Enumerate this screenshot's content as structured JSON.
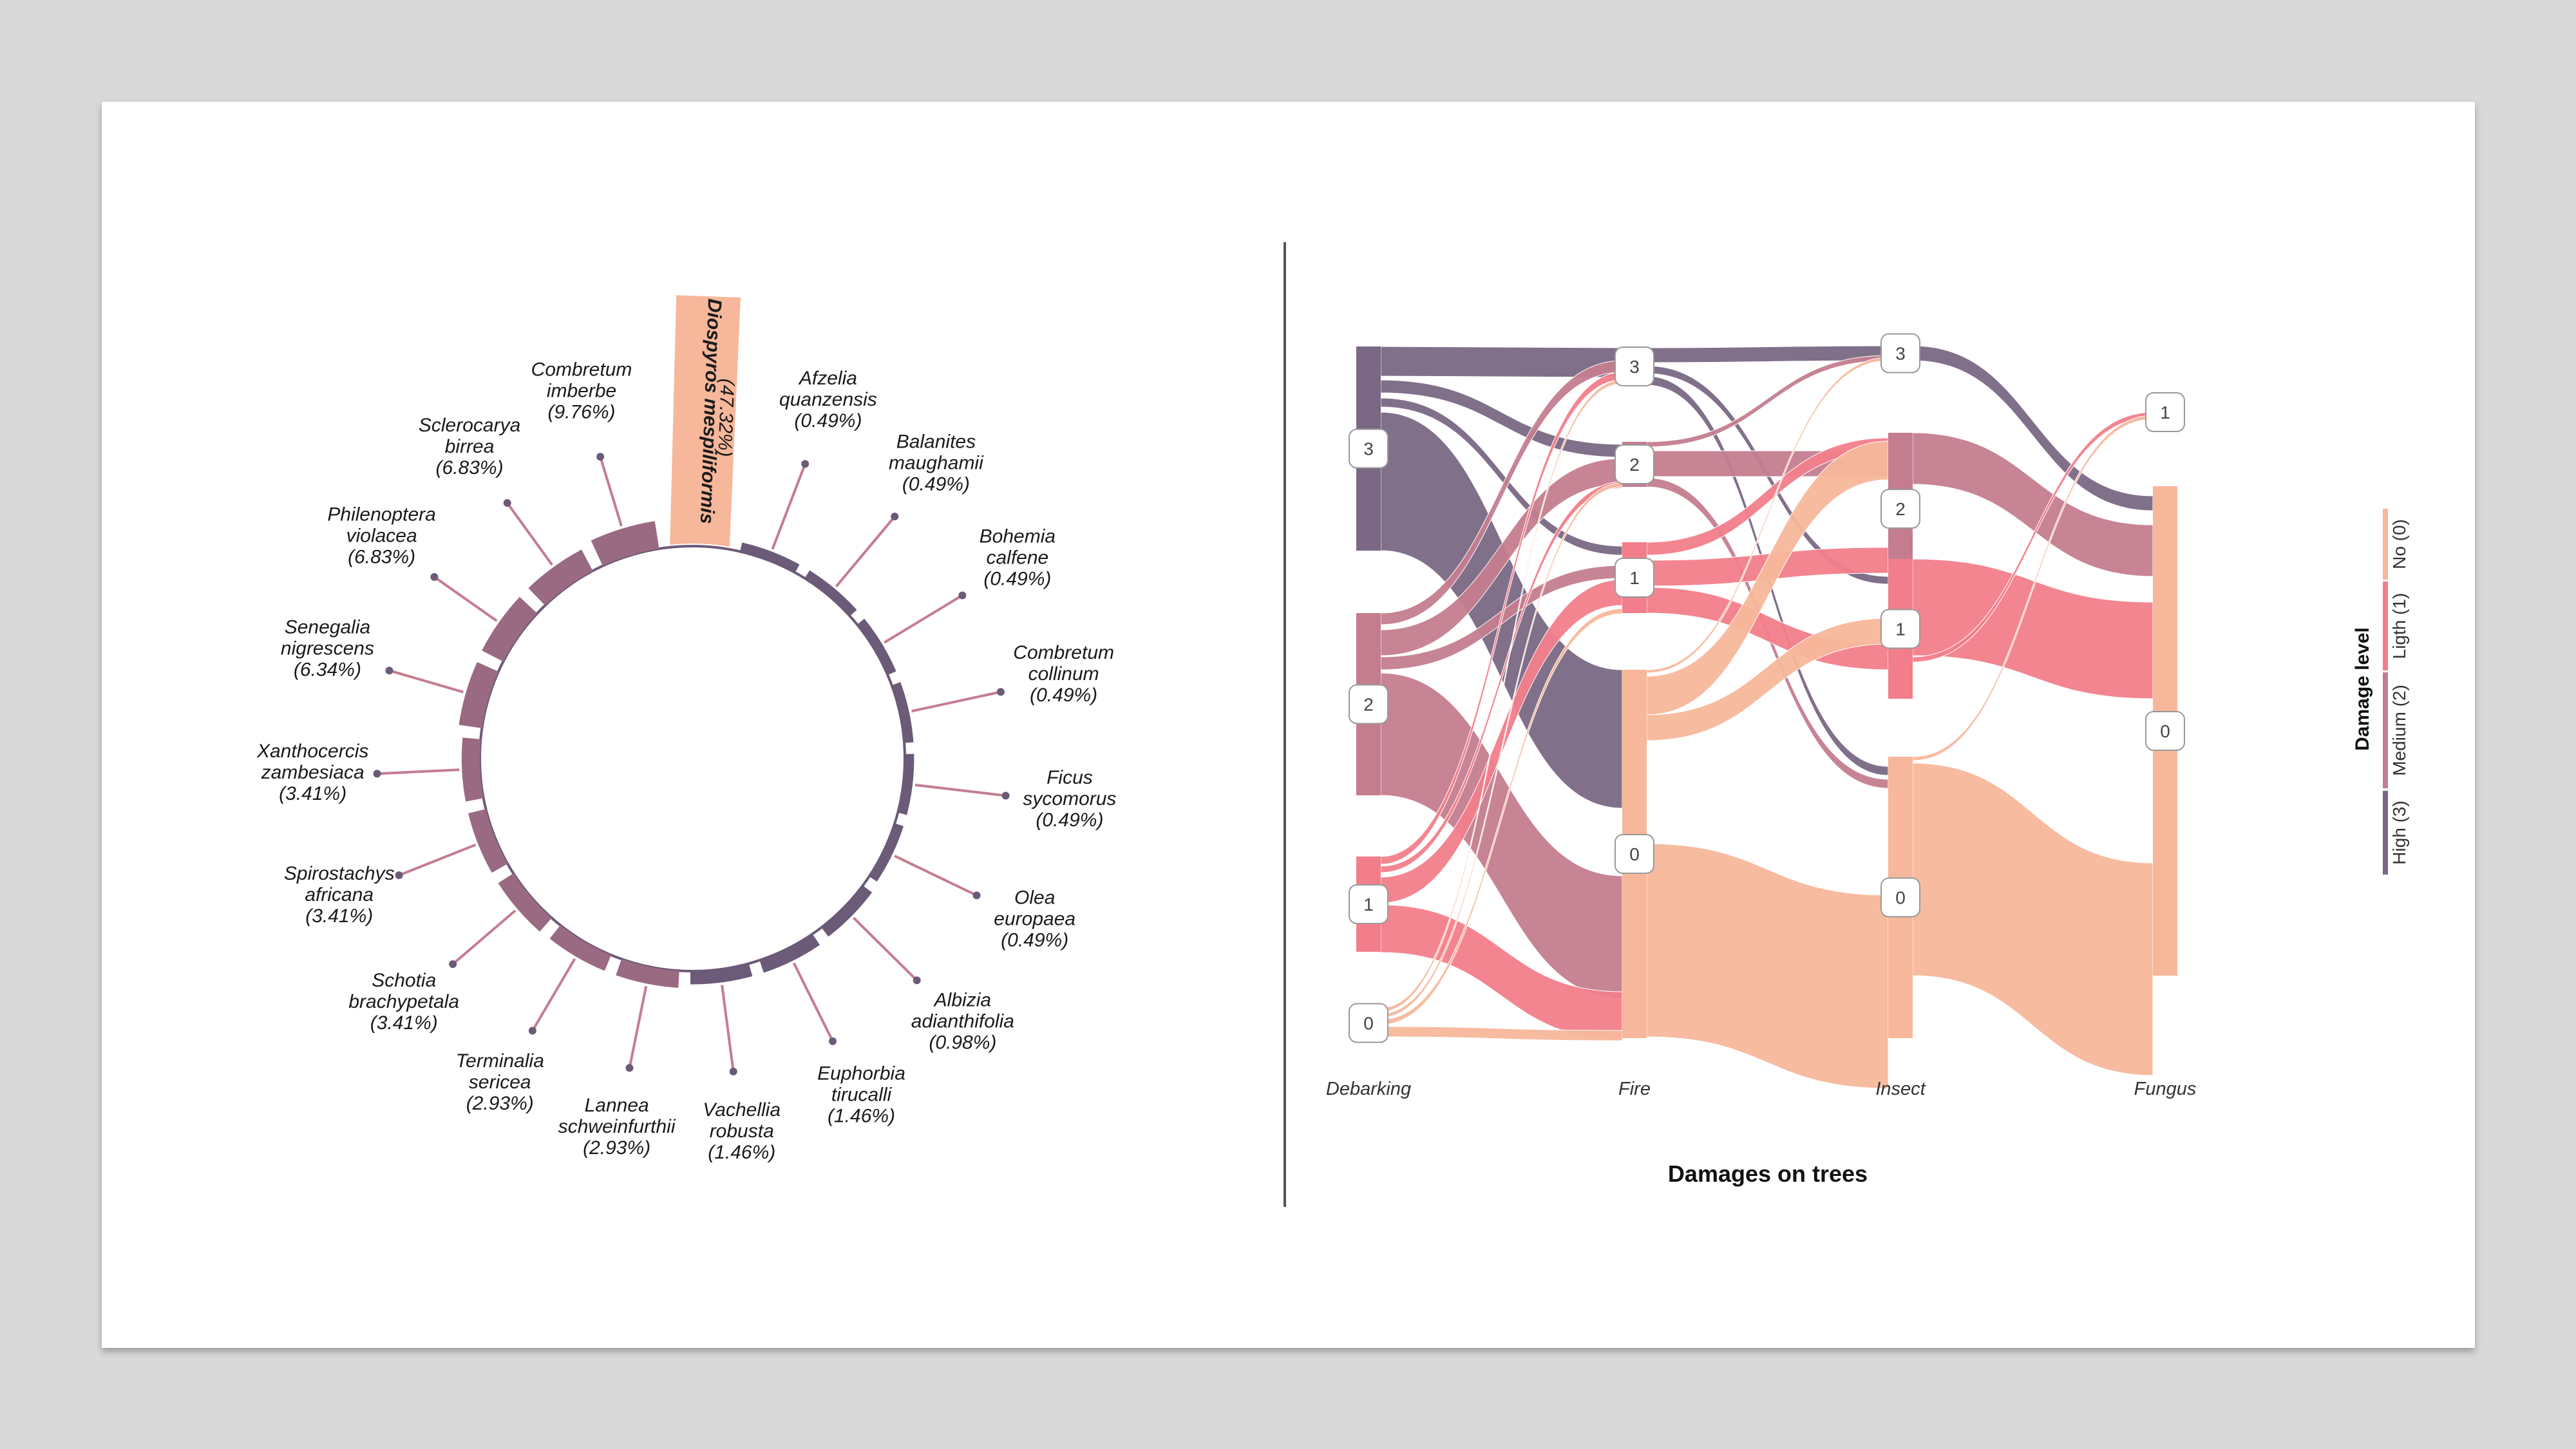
{
  "colors": {
    "high": "#7a6884",
    "medium": "#c47d8f",
    "light": "#f27e8b",
    "no": "#f7b79b",
    "bar": "#9a6a82",
    "ring": "#6b5a78"
  },
  "chart_data": [
    {
      "type": "radial-bar",
      "species": [
        {
          "name": "Diospyros mespiliformis",
          "pct": "(47.32%)",
          "value": 47.32
        },
        {
          "name": "Afzelia quanzensis",
          "pct": "(0.49%)",
          "value": 0.49
        },
        {
          "name": "Balanites maughamii",
          "pct": "(0.49%)",
          "value": 0.49
        },
        {
          "name": "Bohemia calfene",
          "pct": "(0.49%)",
          "value": 0.49
        },
        {
          "name": "Combretum collinum",
          "pct": "(0.49%)",
          "value": 0.49
        },
        {
          "name": "Ficus sycomorus",
          "pct": "(0.49%)",
          "value": 0.49
        },
        {
          "name": "Olea europaea",
          "pct": "(0.49%)",
          "value": 0.49
        },
        {
          "name": "Albizia adianthifolia",
          "pct": "(0.98%)",
          "value": 0.98
        },
        {
          "name": "Euphorbia tirucalli",
          "pct": "(1.46%)",
          "value": 1.46
        },
        {
          "name": "Vachellia robusta",
          "pct": "(1.46%)",
          "value": 1.46
        },
        {
          "name": "Lannea schweinfurthii",
          "pct": "(2.93%)",
          "value": 2.93
        },
        {
          "name": "Terminalia sericea",
          "pct": "(2.93%)",
          "value": 2.93
        },
        {
          "name": "Schotia brachypetala",
          "pct": "(3.41%)",
          "value": 3.41
        },
        {
          "name": "Spirostachys africana",
          "pct": "(3.41%)",
          "value": 3.41
        },
        {
          "name": "Xanthocercis zambesiaca",
          "pct": "(3.41%)",
          "value": 3.41
        },
        {
          "name": "Senegalia nigrescens",
          "pct": "(6.34%)",
          "value": 6.34
        },
        {
          "name": "Philenoptera violacea",
          "pct": "(6.83%)",
          "value": 6.83
        },
        {
          "name": "Sclerocarya birrea",
          "pct": "(6.83%)",
          "value": 6.83
        },
        {
          "name": "Combretum imberbe",
          "pct": "(9.76%)",
          "value": 9.76
        }
      ]
    },
    {
      "type": "sankey",
      "title": "Damages on trees",
      "stages": [
        "Debarking",
        "Fire",
        "Insect",
        "Fungus"
      ],
      "legend": {
        "title": "Damage level",
        "items": [
          "No (0)",
          "Ligth (1)",
          "Medium (2)",
          "High (3)"
        ]
      },
      "node_labels": {
        "Debarking": [
          "3",
          "2",
          "1",
          "0"
        ],
        "Fire": [
          "3",
          "2",
          "1",
          "0"
        ],
        "Insect": [
          "3",
          "2",
          "1",
          "0"
        ],
        "Fungus": [
          "1",
          "0"
        ]
      }
    }
  ]
}
